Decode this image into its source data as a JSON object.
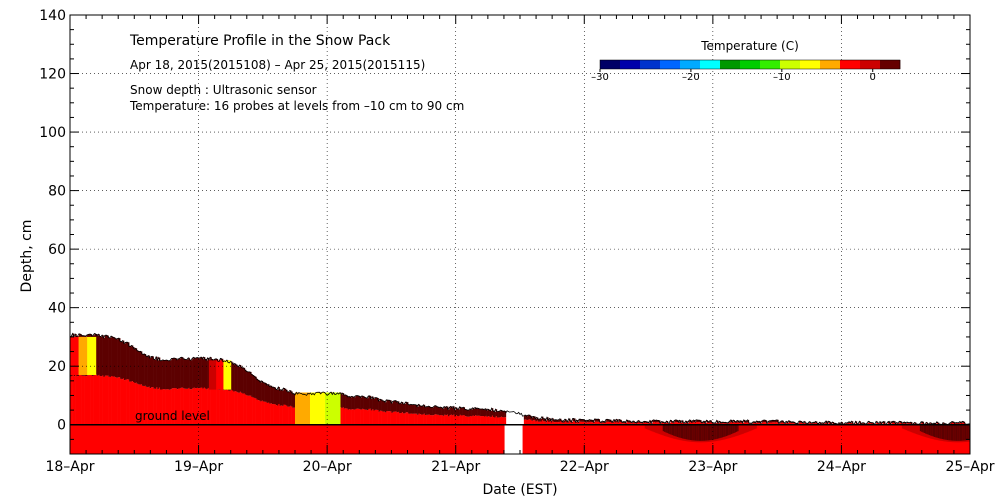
{
  "chart_data": {
    "type": "heatmap",
    "title": "Temperature Profile in the Snow Pack",
    "subtitle": "Apr 18, 2015(2015108) – Apr 25, 2015(2015115)",
    "notes": [
      "Snow depth : Ultrasonic sensor",
      "Temperature: 16 probes at levels from –10 cm to 90 cm"
    ],
    "xlabel": "Date (EST)",
    "ylabel": "Depth, cm",
    "x_ticks": [
      "18–Apr",
      "19–Apr",
      "20–Apr",
      "21–Apr",
      "22–Apr",
      "23–Apr",
      "24–Apr",
      "25–Apr"
    ],
    "y_ticks": [
      "0",
      "20",
      "40",
      "60",
      "80",
      "100",
      "120",
      "140"
    ],
    "ylim": [
      -10,
      140
    ],
    "grid": true,
    "ground_level_label": "ground level",
    "colorbar": {
      "title": "Temperature (C)",
      "tick_labels": [
        "–30",
        "–20",
        "–10",
        "0"
      ],
      "range": [
        -30,
        3
      ],
      "colors": [
        "#000066",
        "#0000aa",
        "#0033cc",
        "#0066ff",
        "#00aaff",
        "#00ffff",
        "#009900",
        "#00cc00",
        "#33ee00",
        "#ccff00",
        "#ffff00",
        "#ffaa00",
        "#ff0000",
        "#cc0000",
        "#660000"
      ]
    },
    "snow_depth": {
      "x_days": [
        0,
        0.05,
        0.2,
        0.35,
        0.45,
        0.6,
        0.75,
        0.8,
        0.9,
        1.0,
        1.1,
        1.25,
        1.35,
        1.45,
        1.6,
        1.7,
        1.75,
        1.85,
        2.0,
        2.1,
        2.2,
        2.3,
        2.4,
        2.55,
        2.7,
        2.85,
        3.0,
        3.2,
        3.35,
        3.45,
        3.6,
        3.8,
        4.0,
        4.5,
        5.0,
        5.5,
        6.0,
        6.5,
        7.0
      ],
      "depth_cm": [
        30,
        30,
        30,
        29,
        27,
        23,
        21,
        22,
        22,
        22,
        22,
        21,
        19,
        15,
        12,
        11,
        10,
        10,
        10,
        10,
        9,
        9,
        8,
        7,
        6,
        5.5,
        5,
        5,
        4,
        3.5,
        2,
        1,
        1,
        0.5,
        0.5,
        0.5,
        0,
        0,
        0
      ]
    },
    "data_gap_days": [
      3.38,
      3.52
    ],
    "warm_layer_color": "#ff0000",
    "mid_layer_color": "#cc0000",
    "top_layer_color": "#5c0000",
    "cold_patches": [
      {
        "x_days": [
          0,
          0.2
        ],
        "temps_c": [
          -2,
          -4,
          -6
        ],
        "depth_cm": [
          17,
          30
        ]
      },
      {
        "x_days": [
          1.08,
          1.25
        ],
        "temps_c": [
          -1,
          -3,
          -7
        ],
        "depth_cm": [
          12,
          22
        ]
      },
      {
        "x_days": [
          1.75,
          2.1
        ],
        "temps_c": [
          -4,
          -6,
          -9
        ],
        "depth_cm": [
          0,
          11
        ]
      }
    ]
  }
}
